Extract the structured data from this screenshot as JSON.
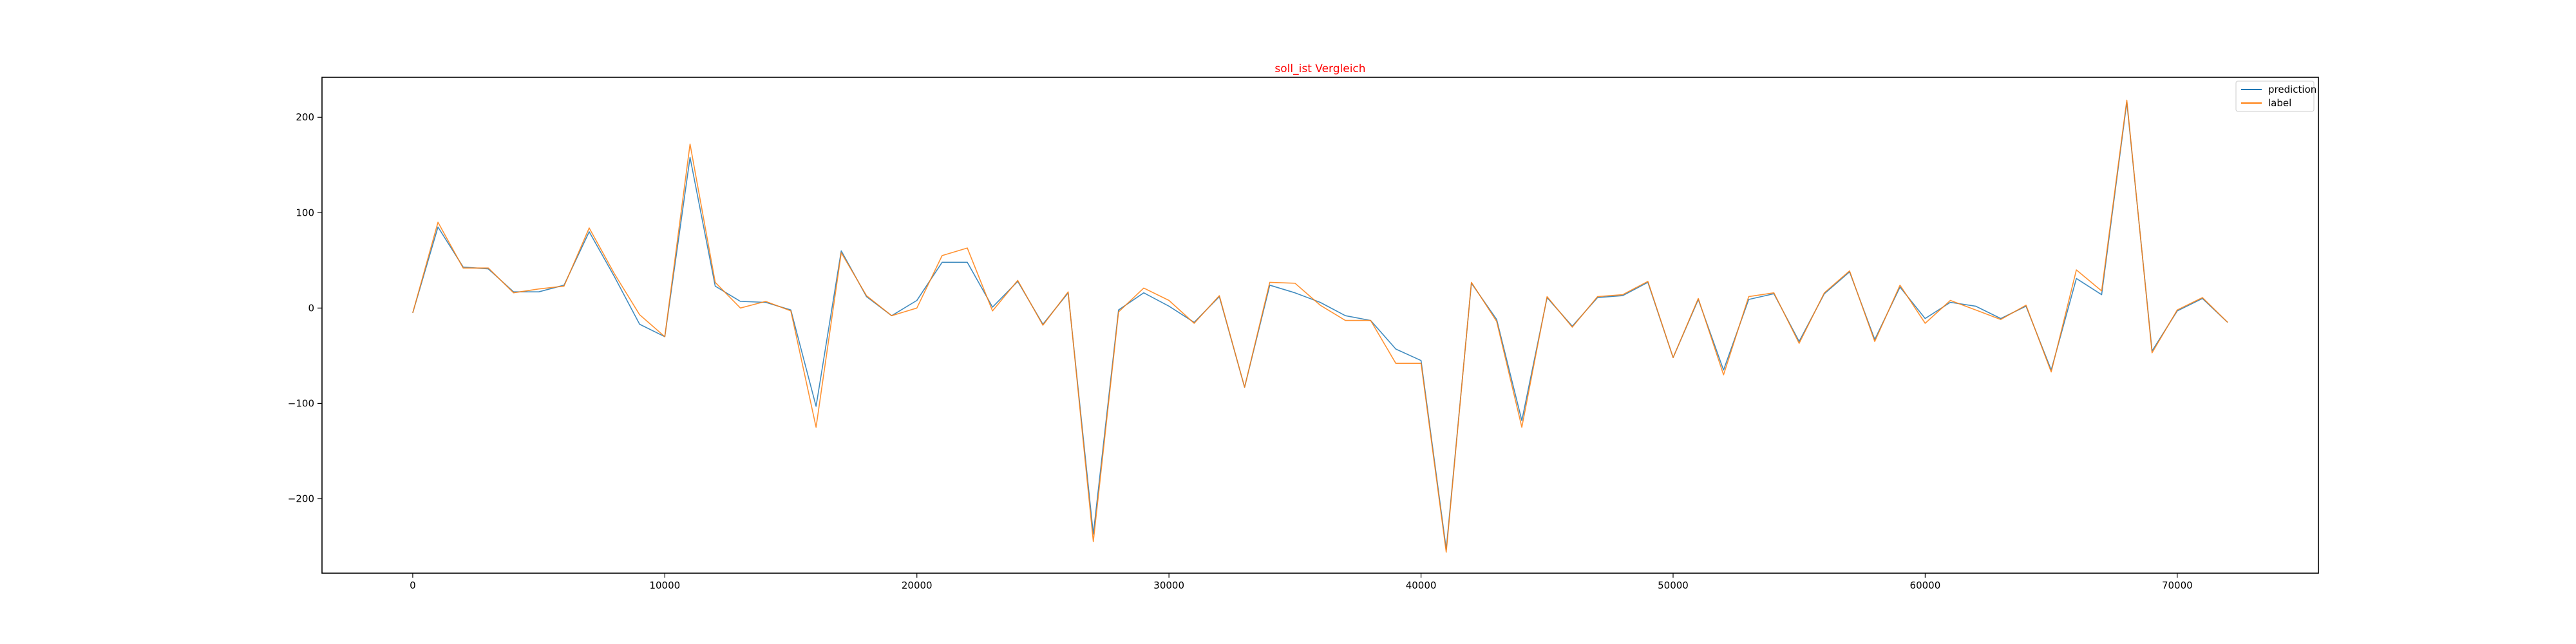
{
  "colors": {
    "prediction": "#1f77b4",
    "label": "#ff7f0e",
    "title": "#ff0000",
    "axes": "#000000",
    "legend_border": "#cccccc"
  },
  "chart_data": {
    "type": "line",
    "title": "soll_ist Vergleich",
    "xlabel": "",
    "ylabel": "",
    "xlim": [
      -3600,
      75600
    ],
    "ylim": [
      -278,
      242
    ],
    "xticks": [
      0,
      10000,
      20000,
      30000,
      40000,
      50000,
      60000,
      70000
    ],
    "xtick_labels": [
      "0",
      "10000",
      "20000",
      "30000",
      "40000",
      "50000",
      "60000",
      "70000"
    ],
    "yticks": [
      200,
      100,
      0,
      -100,
      -200
    ],
    "ytick_labels": [
      "200",
      "100",
      "0",
      "−100",
      "−200"
    ],
    "grid": false,
    "legend_position": "top-right",
    "x": [
      0,
      1000,
      2000,
      3000,
      4000,
      5000,
      6000,
      7000,
      8000,
      9000,
      10000,
      11000,
      12000,
      13000,
      14000,
      15000,
      16000,
      17000,
      18000,
      19000,
      20000,
      21000,
      22000,
      23000,
      24000,
      25000,
      26000,
      27000,
      28000,
      29000,
      30000,
      31000,
      32000,
      33000,
      34000,
      35000,
      36000,
      37000,
      38000,
      39000,
      40000,
      41000,
      42000,
      43000,
      44000,
      45000,
      46000,
      47000,
      48000,
      49000,
      50000,
      51000,
      52000,
      53000,
      54000,
      55000,
      56000,
      57000,
      58000,
      59000,
      60000,
      61000,
      62000,
      63000,
      64000,
      65000,
      66000,
      67000,
      68000,
      69000,
      70000,
      71000,
      72000
    ],
    "series": [
      {
        "name": "prediction",
        "values": [
          -5,
          85,
          43,
          41,
          17,
          17,
          24,
          80,
          33,
          -17,
          -30,
          158,
          23,
          7,
          6,
          -2,
          -103,
          60,
          12,
          -8,
          8,
          48,
          48,
          1,
          28,
          -17,
          16,
          -237,
          -2,
          16,
          2,
          -15,
          12,
          -83,
          24,
          16,
          6,
          -8,
          -13,
          -43,
          -55,
          -253,
          26,
          -12,
          -118,
          11,
          -19,
          11,
          13,
          27,
          -52,
          9,
          -65,
          9,
          15,
          -35,
          15,
          38,
          -33,
          22,
          -11,
          6,
          2,
          -11,
          2,
          -65,
          31,
          14,
          216,
          -45,
          -3,
          10,
          -15
        ]
      },
      {
        "name": "label",
        "values": [
          -5,
          90,
          42,
          42,
          16,
          20,
          23,
          84,
          36,
          -7,
          -30,
          172,
          27,
          0,
          7,
          -3,
          -125,
          58,
          13,
          -8,
          0,
          55,
          63,
          -3,
          29,
          -18,
          17,
          -245,
          -4,
          21,
          8,
          -16,
          13,
          -83,
          27,
          26,
          3,
          -13,
          -13,
          -58,
          -58,
          -256,
          27,
          -14,
          -125,
          12,
          -20,
          12,
          14,
          28,
          -52,
          10,
          -70,
          12,
          16,
          -37,
          16,
          39,
          -35,
          24,
          -16,
          8,
          -2,
          -12,
          3,
          -67,
          40,
          18,
          218,
          -47,
          -2,
          11,
          -15
        ]
      }
    ]
  }
}
